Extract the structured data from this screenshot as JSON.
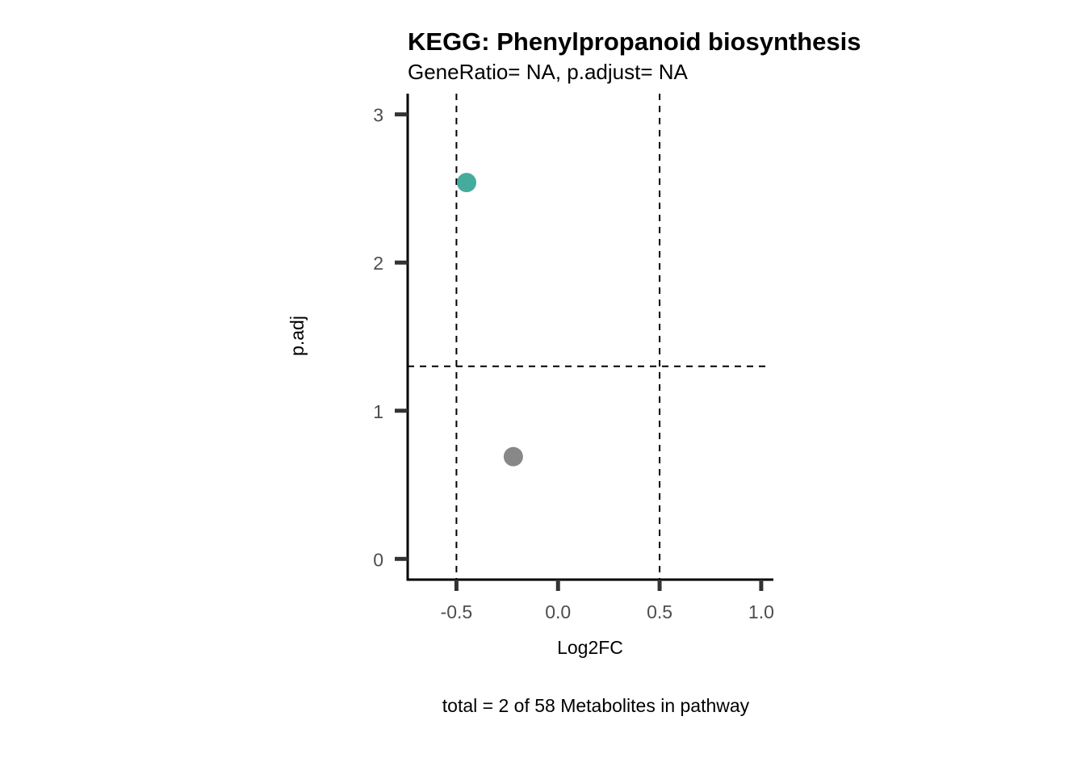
{
  "chart_data": {
    "type": "scatter",
    "title": "KEGG: Phenylpropanoid biosynthesis",
    "subtitle": "GeneRatio= NA, p.adjust= NA",
    "xlabel": "Log2FC",
    "ylabel": "p.adj",
    "caption": "total = 2 of 58 Metabolites in pathway",
    "xlim": [
      -0.74,
      1.06
    ],
    "ylim": [
      -0.14,
      3.14
    ],
    "x_ticks": [
      -0.5,
      0.0,
      0.5,
      1.0
    ],
    "x_tick_labels": [
      "-0.5",
      "0.0",
      "0.5",
      "1.0"
    ],
    "y_ticks": [
      0,
      1,
      2,
      3
    ],
    "y_tick_labels": [
      "0",
      "1",
      "2",
      "3"
    ],
    "threshold_lines": {
      "vertical": [
        -0.5,
        0.5
      ],
      "horizontal": [
        1.3
      ]
    },
    "points": [
      {
        "x": -0.45,
        "y": 2.54,
        "color": "#45ab9d"
      },
      {
        "x": -0.22,
        "y": 0.69,
        "color": "#888888"
      }
    ],
    "grid": false
  }
}
